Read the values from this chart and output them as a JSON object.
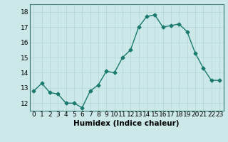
{
  "x": [
    0,
    1,
    2,
    3,
    4,
    5,
    6,
    7,
    8,
    9,
    10,
    11,
    12,
    13,
    14,
    15,
    16,
    17,
    18,
    19,
    20,
    21,
    22,
    23
  ],
  "y": [
    12.8,
    13.3,
    12.7,
    12.6,
    12.0,
    12.0,
    11.7,
    12.8,
    13.2,
    14.1,
    14.0,
    15.0,
    15.5,
    17.0,
    17.7,
    17.8,
    17.0,
    17.1,
    17.2,
    16.7,
    15.3,
    14.3,
    13.5,
    13.5
  ],
  "line_color": "#1a7a6e",
  "marker": "D",
  "marker_size": 2.5,
  "line_width": 1.0,
  "xlabel": "Humidex (Indice chaleur)",
  "xlabel_fontsize": 7.5,
  "ylim": [
    11.5,
    18.5
  ],
  "xlim": [
    -0.5,
    23.5
  ],
  "yticks": [
    12,
    13,
    14,
    15,
    16,
    17,
    18
  ],
  "xticks": [
    0,
    1,
    2,
    3,
    4,
    5,
    6,
    7,
    8,
    9,
    10,
    11,
    12,
    13,
    14,
    15,
    16,
    17,
    18,
    19,
    20,
    21,
    22,
    23
  ],
  "xtick_labels": [
    "0",
    "1",
    "2",
    "3",
    "4",
    "5",
    "6",
    "7",
    "8",
    "9",
    "10",
    "11",
    "12",
    "13",
    "14",
    "15",
    "16",
    "17",
    "18",
    "19",
    "20",
    "21",
    "22",
    "23"
  ],
  "grid_color": "#b8d8d8",
  "bg_color": "#cce8e8",
  "tick_fontsize": 6.5,
  "fig_bg_color": "#cce8e8",
  "spine_color": "#3a7a70"
}
